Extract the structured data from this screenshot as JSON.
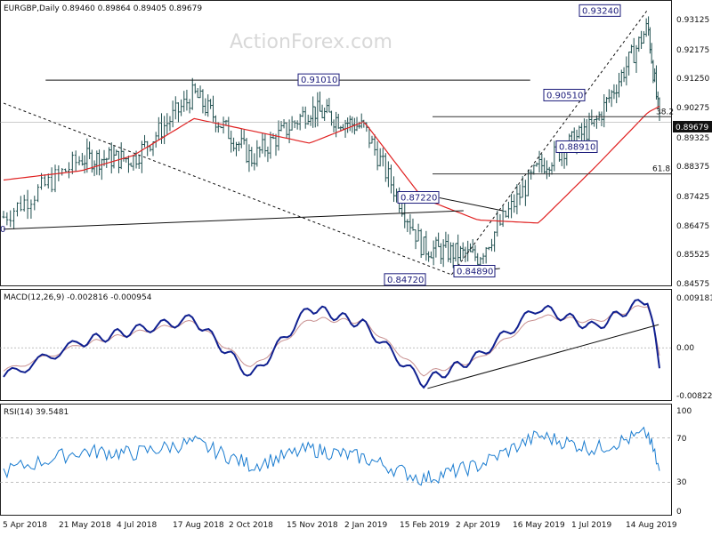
{
  "watermark": "ActionForex.com",
  "price_panel": {
    "title": "EURGBP,Daily  0.89460 0.89864 0.89405 0.89679",
    "last_price_label": "0.89679",
    "y_ticks": [
      "0.93125",
      "0.92175",
      "0.91250",
      "0.90275",
      "0.89325",
      "0.88375",
      "0.87425",
      "0.86475",
      "0.85525",
      "0.84575"
    ],
    "annotations": [
      "0.93240",
      "0.91010",
      "0.90510",
      "0.88910",
      "0.87220",
      "0.84720",
      "0.84890",
      "0",
      "38.2",
      "61.8"
    ]
  },
  "macd_panel": {
    "title": "MACD(12,26,9) -0.002816 -0.000954",
    "y_ticks": [
      "0.009181",
      "0.00",
      "-0.008225"
    ]
  },
  "rsi_panel": {
    "title": "RSI(14) 39.5481",
    "y_ticks": [
      "100",
      "70",
      "30",
      "0"
    ]
  },
  "x_ticks": [
    "5 Apr 2018",
    "21 May 2018",
    "4 Jul 2018",
    "17 Aug 2018",
    "2 Oct 2018",
    "15 Nov 2018",
    "2 Jan 2019",
    "15 Feb 2019",
    "2 Apr 2019",
    "16 May 2019",
    "1 Jul 2019",
    "14 Aug 2019"
  ],
  "chart_data": [
    {
      "type": "line",
      "title": "EURGBP,Daily  0.89460 0.89864 0.89405 0.89679",
      "x": [
        "5 Apr 2018",
        "21 May 2018",
        "4 Jul 2018",
        "17 Aug 2018",
        "2 Oct 2018",
        "15 Nov 2018",
        "2 Jan 2019",
        "15 Feb 2019",
        "2 Apr 2019",
        "16 May 2019",
        "1 Jul 2019",
        "14 Aug 2019",
        "Aug 2019"
      ],
      "series": [
        {
          "values": [
            0.866,
            0.885,
            0.885,
            0.906,
            0.885,
            0.901,
            0.895,
            0.856,
            0.853,
            0.882,
            0.896,
            0.928,
            0.8968
          ]
        },
        {
          "values": [
            0.878,
            0.881,
            0.886,
            0.898,
            0.894,
            0.89,
            0.897,
            0.872,
            0.865,
            0.864,
            0.882,
            0.9,
            0.902
          ]
        }
      ],
      "ylim": [
        0.844,
        0.936
      ],
      "colors": {
        "price": "#1f4f4f",
        "ma": "#e02020",
        "annotation": "#1a1a7a",
        "fib": "#333333"
      },
      "annotations": [
        "0.93240",
        "0.91010",
        "0.90510",
        "0.88910",
        "0.87220",
        "0.84720",
        "0.84890",
        "38.2",
        "61.8"
      ]
    },
    {
      "type": "line",
      "title": "MACD(12,26,9) -0.002816 -0.000954",
      "x": [
        "5 Apr 2018",
        "21 May 2018",
        "4 Jul 2018",
        "17 Aug 2018",
        "2 Oct 2018",
        "15 Nov 2018",
        "2 Jan 2019",
        "15 Feb 2019",
        "2 Apr 2019",
        "16 May 2019",
        "1 Jul 2019",
        "14 Aug 2019",
        "Aug 2019"
      ],
      "series": [
        {
          "values": [
            -0.005,
            0.001,
            0.003,
            0.005,
            -0.005,
            0.007,
            0.004,
            -0.006,
            -0.0015,
            0.007,
            0.0035,
            0.0085,
            -0.0028
          ]
        },
        {
          "values": [
            -0.004,
            0.0005,
            0.0025,
            0.0045,
            -0.0035,
            0.005,
            0.0045,
            -0.0045,
            -0.002,
            0.0055,
            0.0045,
            0.0075,
            -0.001
          ]
        }
      ],
      "ylim": [
        -0.009,
        0.01
      ],
      "colors": {
        "macd": "#102090",
        "signal": "#c89090",
        "trendline": "#111111"
      }
    },
    {
      "type": "line",
      "title": "RSI(14) 39.5481",
      "x": [
        "5 Apr 2018",
        "21 May 2018",
        "4 Jul 2018",
        "17 Aug 2018",
        "2 Oct 2018",
        "15 Nov 2018",
        "2 Jan 2019",
        "15 Feb 2019",
        "2 Apr 2019",
        "16 May 2019",
        "1 Jul 2019",
        "14 Aug 2019",
        "Aug 2019"
      ],
      "series": [
        {
          "values": [
            40,
            58,
            56,
            66,
            45,
            60,
            52,
            33,
            45,
            72,
            60,
            74,
            39.5
          ]
        }
      ],
      "ylim": [
        0,
        100
      ],
      "colors": {
        "rsi": "#1a7cd0",
        "levels": "#aaaaaa"
      }
    }
  ]
}
